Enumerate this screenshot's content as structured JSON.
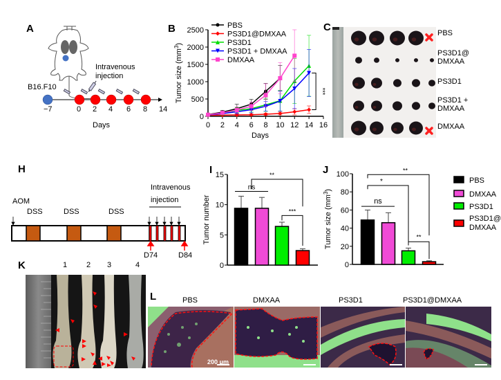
{
  "panels": {
    "A": {
      "letter": "A",
      "cell_line": "B16.F10",
      "injection_label_1": "Intravenous",
      "injection_label_2": "injection",
      "timeline_days": [
        "−7",
        "0",
        "2",
        "4",
        "6",
        "8",
        "14"
      ],
      "xlabel": "Days",
      "colors": {
        "inoculation": "#4472C4",
        "treatment": "#FF0000"
      }
    },
    "B": {
      "letter": "B"
    },
    "C": {
      "letter": "C",
      "rows": [
        {
          "label": "PBS",
          "marked": true,
          "counts": 4
        },
        {
          "label_1": "PS3D1@",
          "label_2": "DMXAA",
          "marked": false,
          "counts": 5
        },
        {
          "label": "PS3D1",
          "marked": false,
          "counts": 5
        },
        {
          "label_1": "PS3D1 +",
          "label_2": "DMXAA",
          "marked": false,
          "counts": 5
        },
        {
          "label": "DMXAA",
          "marked": true,
          "counts": 4
        }
      ],
      "mark_icon": "x-mark-icon"
    },
    "H": {
      "letter": "H",
      "aom": "AOM",
      "dss": [
        "DSS",
        "DSS",
        "DSS"
      ],
      "injection_label_1": "Intravenous",
      "injection_label_2": "injection",
      "d_start": "D74",
      "d_end": "D84",
      "colors": {
        "dss": "#C55A11",
        "injection": "#FF0000"
      }
    },
    "I": {
      "letter": "I"
    },
    "J": {
      "letter": "J"
    },
    "K": {
      "letter": "K",
      "lanes": [
        "1",
        "2",
        "3",
        "4"
      ]
    },
    "L": {
      "letter": "L",
      "titles": [
        "PBS",
        "DMXAA",
        "PS3D1",
        "PS3D1@DMXAA"
      ],
      "scale_bar": "200 μm"
    }
  },
  "chart_data": [
    {
      "id": "B",
      "type": "line",
      "title": "",
      "xlabel": "Days",
      "ylabel": "Tumor size (mm³)",
      "ylabel_main": "Tumor size (mm",
      "ylabel_sup": "3",
      "ylabel_close": ")",
      "xlim": [
        0,
        16
      ],
      "ylim": [
        0,
        2500
      ],
      "xticks": [
        0,
        2,
        4,
        6,
        8,
        10,
        12,
        14,
        16
      ],
      "yticks": [
        0,
        500,
        1000,
        1500,
        2000,
        2500
      ],
      "legend_position": "top-left",
      "significance": "***",
      "series": [
        {
          "name": "PBS",
          "color": "#000000",
          "marker": "circle",
          "x": [
            0,
            2,
            4,
            6,
            8,
            10
          ],
          "y": [
            50,
            120,
            220,
            350,
            720,
            1100
          ],
          "err": [
            20,
            50,
            130,
            140,
            230,
            370
          ]
        },
        {
          "name": "PS3D1@DMXAA",
          "color": "#FF0000",
          "marker": "diamond",
          "x": [
            0,
            2,
            4,
            6,
            8,
            10,
            12,
            14
          ],
          "y": [
            30,
            35,
            40,
            45,
            60,
            80,
            130,
            190
          ],
          "err": [
            10,
            15,
            20,
            20,
            30,
            40,
            90,
            110
          ]
        },
        {
          "name": "PS3D1",
          "color": "#00DD00",
          "marker": "triangle-up",
          "x": [
            0,
            2,
            4,
            6,
            8,
            10,
            12,
            14
          ],
          "y": [
            40,
            90,
            170,
            220,
            330,
            450,
            1020,
            1460
          ],
          "err": [
            15,
            40,
            80,
            100,
            190,
            300,
            650,
            880
          ]
        },
        {
          "name": "PS3D1 + DMXAA",
          "color": "#0000FF",
          "marker": "triangle-down",
          "x": [
            0,
            2,
            4,
            6,
            8,
            10,
            12,
            14
          ],
          "y": [
            40,
            80,
            130,
            190,
            290,
            440,
            800,
            1250
          ],
          "err": [
            15,
            30,
            60,
            90,
            140,
            290,
            580,
            680
          ]
        },
        {
          "name": "DMXAA",
          "color": "#FF44CC",
          "marker": "square",
          "x": [
            0,
            2,
            4,
            6,
            8,
            10,
            12
          ],
          "y": [
            45,
            100,
            180,
            290,
            610,
            1100,
            1750
          ],
          "err": [
            15,
            40,
            90,
            120,
            330,
            450,
            750
          ]
        }
      ]
    },
    {
      "id": "I",
      "type": "bar",
      "title": "",
      "xlabel": "",
      "ylabel": "Tumor number",
      "ylim": [
        0,
        15
      ],
      "yticks": [
        0,
        5,
        10,
        15
      ],
      "categories": [
        "PBS",
        "DMXAA",
        "PS3D1",
        "PS3D1@DMXAA"
      ],
      "values": [
        9.4,
        9.4,
        6.4,
        2.4
      ],
      "errors": [
        2.0,
        1.8,
        0.7,
        0.3
      ],
      "colors": [
        "#000000",
        "#F04BD6",
        "#00EE00",
        "#FF0000"
      ],
      "significance": [
        {
          "pair": [
            0,
            1
          ],
          "label": "ns"
        },
        {
          "pair": [
            0,
            3
          ],
          "label": "**"
        },
        {
          "pair": [
            2,
            3
          ],
          "label": "***"
        }
      ]
    },
    {
      "id": "J",
      "type": "bar",
      "title": "",
      "xlabel": "",
      "ylabel": "Tumor size (mm³)",
      "ylabel_main": "Tumor size (mm",
      "ylabel_sup": "3",
      "ylabel_close": ")",
      "ylim": [
        0,
        100
      ],
      "yticks": [
        0,
        20,
        40,
        60,
        80,
        100
      ],
      "categories": [
        "PBS",
        "DMXAA",
        "PS3D1",
        "PS3D1@DMXAA"
      ],
      "values": [
        49,
        46,
        15,
        3
      ],
      "errors": [
        11,
        11,
        3,
        1
      ],
      "colors": [
        "#000000",
        "#F04BD6",
        "#00EE00",
        "#FF0000"
      ],
      "legend_position": "right",
      "legend": [
        "PBS",
        "DMXAA",
        "PS3D1",
        "PS3D1@",
        "DMXAA"
      ],
      "significance": [
        {
          "pair": [
            0,
            1
          ],
          "label": "ns"
        },
        {
          "pair": [
            0,
            2
          ],
          "label": "*"
        },
        {
          "pair": [
            0,
            3
          ],
          "label": "**"
        },
        {
          "pair": [
            2,
            3
          ],
          "label": "**"
        }
      ]
    }
  ]
}
